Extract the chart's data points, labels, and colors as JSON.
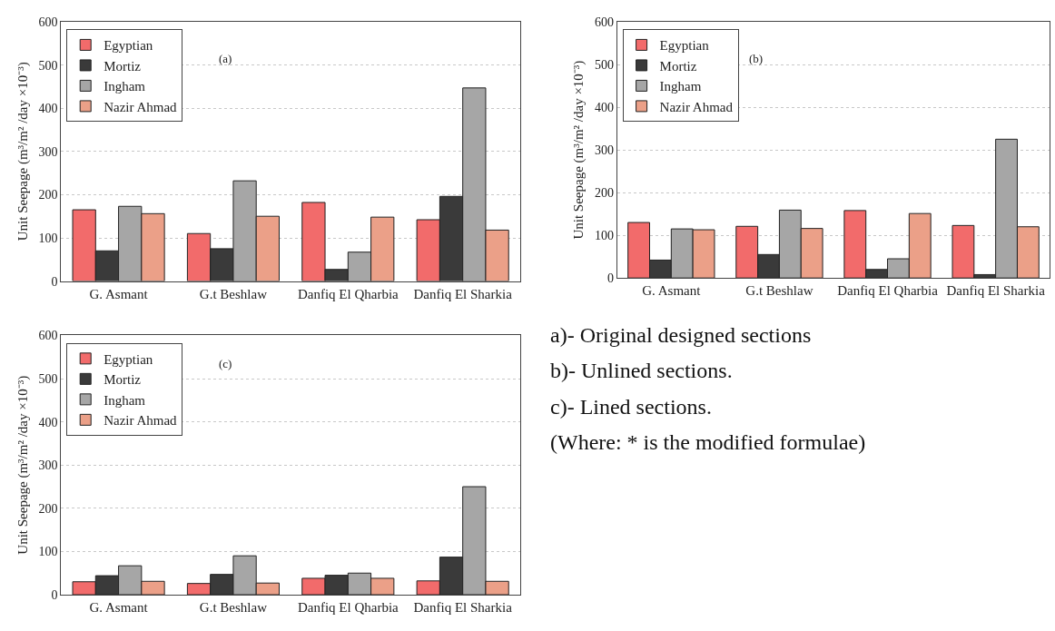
{
  "chart_data": [
    {
      "type": "bar",
      "annotations": [
        "(a)"
      ],
      "ylabel": "Unit Seepage (m³/m² /day ×10⁻³)",
      "categories": [
        "G. Asmant",
        "G.t Beshlaw",
        "Danfiq El Qharbia",
        "Danfiq El Sharkia"
      ],
      "ylim": [
        0,
        600
      ],
      "yticks": [
        0,
        100,
        200,
        300,
        400,
        500,
        600
      ],
      "grid": "y",
      "legend": "top left",
      "series": [
        {
          "name": "Egyptian",
          "color": "#f26b6b",
          "values": [
            165,
            110,
            182,
            142
          ]
        },
        {
          "name": "Mortiz",
          "color": "#3a3a3a",
          "values": [
            70,
            75,
            27,
            196
          ]
        },
        {
          "name": "Ingham",
          "color": "#a6a6a6",
          "values": [
            173,
            232,
            67,
            447
          ]
        },
        {
          "name": "Nazir Ahmad",
          "color": "#eba088",
          "values": [
            156,
            150,
            148,
            118
          ]
        }
      ]
    },
    {
      "type": "bar",
      "annotations": [
        "(b)"
      ],
      "ylabel": "Unit Seepage (m³/m² /day ×10⁻³)",
      "categories": [
        "G. Asmant",
        "G.t Beshlaw",
        "Danfiq El Qharbia",
        "Danfiq El Sharkia"
      ],
      "ylim": [
        0,
        600
      ],
      "yticks": [
        0,
        100,
        200,
        300,
        400,
        500,
        600
      ],
      "grid": "y",
      "legend": "top left",
      "series": [
        {
          "name": "Egyptian",
          "color": "#f26b6b",
          "values": [
            130,
            121,
            158,
            123
          ]
        },
        {
          "name": "Mortiz",
          "color": "#3a3a3a",
          "values": [
            42,
            55,
            20,
            8
          ]
        },
        {
          "name": "Ingham",
          "color": "#a6a6a6",
          "values": [
            115,
            159,
            45,
            325
          ]
        },
        {
          "name": "Nazir Ahmad",
          "color": "#eba088",
          "values": [
            113,
            116,
            151,
            120
          ]
        }
      ]
    },
    {
      "type": "bar",
      "annotations": [
        "(c)"
      ],
      "ylabel": "Unit Seepage (m³/m² /day ×10⁻³)",
      "categories": [
        "G. Asmant",
        "G.t Beshlaw",
        "Danfiq El Qharbia",
        "Danfiq El Sharkia"
      ],
      "ylim": [
        0,
        600
      ],
      "yticks": [
        0,
        100,
        200,
        300,
        400,
        500,
        600
      ],
      "grid": "y",
      "legend": "top left",
      "series": [
        {
          "name": "Egyptian",
          "color": "#f26b6b",
          "values": [
            30,
            26,
            38,
            32
          ]
        },
        {
          "name": "Mortiz",
          "color": "#3a3a3a",
          "values": [
            44,
            47,
            45,
            87
          ]
        },
        {
          "name": "Ingham",
          "color": "#a6a6a6",
          "values": [
            67,
            90,
            50,
            250
          ]
        },
        {
          "name": "Nazir Ahmad",
          "color": "#eba088",
          "values": [
            31,
            27,
            38,
            31
          ]
        }
      ]
    },
    {
      "type": "other",
      "annotations": [
        "a)- Original designed sections",
        "b)- Unlined sections.",
        "c)- Lined sections.",
        "(Where: * is the modified formulae)"
      ]
    }
  ]
}
